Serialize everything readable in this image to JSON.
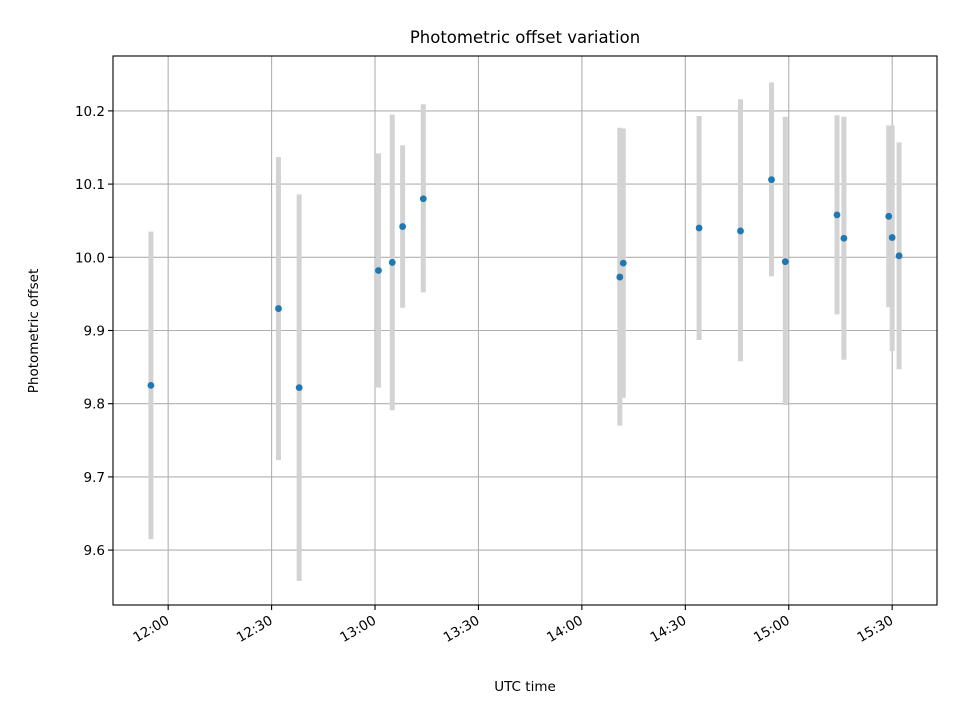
{
  "chart_data": {
    "type": "scatter",
    "title": "Photometric offset variation",
    "xlabel": "UTC time",
    "ylabel": "Photometric offset",
    "xlim": [
      "11:44",
      "15:43"
    ],
    "ylim": [
      9.525,
      10.275
    ],
    "x_ticks": [
      "12:00",
      "12:30",
      "13:00",
      "13:30",
      "14:00",
      "14:30",
      "15:00",
      "15:30"
    ],
    "y_ticks": [
      "9.6",
      "9.7",
      "9.8",
      "9.9",
      "10.0",
      "10.1",
      "10.2"
    ],
    "grid": true,
    "legend": "none",
    "colors": {
      "point": "#1f77b4",
      "errorbar": "#d3d3d3",
      "grid": "#b0b0b0"
    },
    "series": [
      {
        "points": [
          {
            "x": "11:55",
            "y": 9.825,
            "err_low": 9.615,
            "err_high": 10.035
          },
          {
            "x": "12:32",
            "y": 9.93,
            "err_low": 9.723,
            "err_high": 10.137
          },
          {
            "x": "12:38",
            "y": 9.822,
            "err_low": 9.558,
            "err_high": 10.086
          },
          {
            "x": "13:01",
            "y": 9.982,
            "err_low": 9.822,
            "err_high": 10.142
          },
          {
            "x": "13:05",
            "y": 9.993,
            "err_low": 9.791,
            "err_high": 10.195
          },
          {
            "x": "13:08",
            "y": 10.042,
            "err_low": 9.931,
            "err_high": 10.153
          },
          {
            "x": "13:14",
            "y": 10.08,
            "err_low": 9.952,
            "err_high": 10.209
          },
          {
            "x": "14:11",
            "y": 9.973,
            "err_low": 9.77,
            "err_high": 10.177
          },
          {
            "x": "14:12",
            "y": 9.992,
            "err_low": 9.808,
            "err_high": 10.176
          },
          {
            "x": "14:34",
            "y": 10.04,
            "err_low": 9.887,
            "err_high": 10.193
          },
          {
            "x": "14:46",
            "y": 10.036,
            "err_low": 9.858,
            "err_high": 10.216
          },
          {
            "x": "14:55",
            "y": 10.106,
            "err_low": 9.974,
            "err_high": 10.239
          },
          {
            "x": "14:59",
            "y": 9.994,
            "err_low": 9.798,
            "err_high": 10.192
          },
          {
            "x": "15:14",
            "y": 10.058,
            "err_low": 9.922,
            "err_high": 10.194
          },
          {
            "x": "15:16",
            "y": 10.026,
            "err_low": 9.86,
            "err_high": 10.192
          },
          {
            "x": "15:29",
            "y": 10.056,
            "err_low": 9.932,
            "err_high": 10.18
          },
          {
            "x": "15:30",
            "y": 10.027,
            "err_low": 9.872,
            "err_high": 10.18
          },
          {
            "x": "15:32",
            "y": 10.002,
            "err_low": 9.847,
            "err_high": 10.157
          }
        ]
      }
    ]
  }
}
